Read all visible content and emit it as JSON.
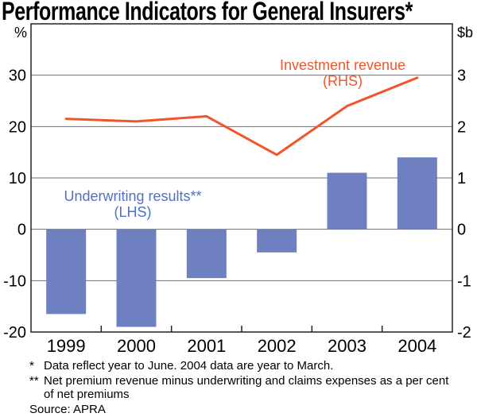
{
  "chart": {
    "title": "Performance Indicators for General Insurers*",
    "left_axis": {
      "unit": "%",
      "ticks": [
        "30",
        "20",
        "10",
        "0",
        "-10",
        "-20"
      ]
    },
    "right_axis": {
      "unit": "$b",
      "ticks": [
        "3",
        "2",
        "1",
        "0",
        "-1",
        "-2"
      ]
    },
    "series_labels": {
      "investment": {
        "line1": "Investment revenue",
        "line2": "(RHS)"
      },
      "underwriting": {
        "line1": "Underwriting results**",
        "line2": "(LHS)"
      }
    },
    "footnotes": [
      {
        "marker": "*",
        "text": "Data reflect year to June. 2004 data are year to March."
      },
      {
        "marker": "**",
        "lines": [
          "Net premium revenue minus underwriting and claims expenses as a per cent",
          "of net premiums"
        ]
      }
    ],
    "source": "Source: APRA"
  },
  "chart_data": {
    "type": "bar+line",
    "title": "Performance Indicators for General Insurers*",
    "categories": [
      "1999",
      "2000",
      "2001",
      "2002",
      "2003",
      "2004"
    ],
    "series": [
      {
        "name": "Underwriting results (LHS)",
        "type": "bar",
        "axis": "left",
        "unit": "%",
        "color": "#6f80c0",
        "values": [
          -16.5,
          -19,
          -9.5,
          -4.5,
          11,
          14
        ]
      },
      {
        "name": "Investment revenue (RHS)",
        "type": "line",
        "axis": "right",
        "unit": "$b",
        "color": "#f0562b",
        "values": [
          2.15,
          2.1,
          2.2,
          1.45,
          2.4,
          2.95
        ]
      }
    ],
    "left_ylim": [
      -20,
      40
    ],
    "right_ylim": [
      -2,
      4
    ],
    "grid": "horizontal",
    "legend": "in-plot text labels"
  },
  "colors": {
    "bar": "#6f80c0",
    "line": "#f0562b",
    "underwriting_label": "#4f71c6",
    "gridline": "#707070",
    "frame": "#222222",
    "text": "#000000"
  }
}
